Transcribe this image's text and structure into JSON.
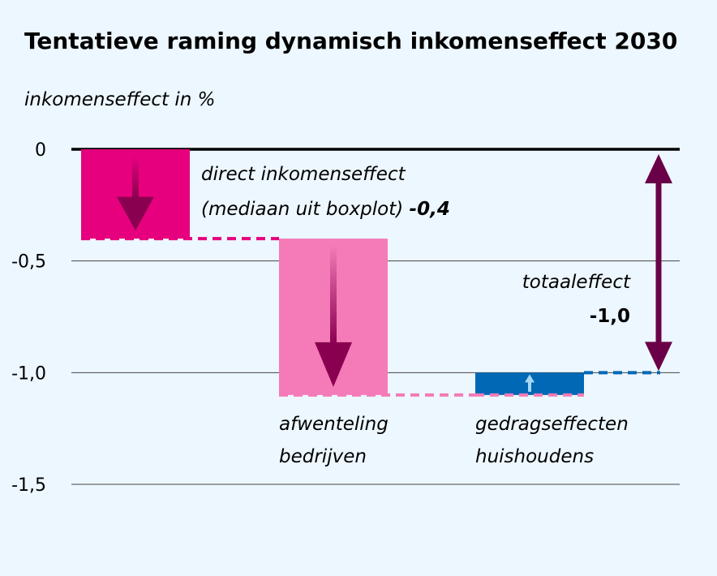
{
  "colors": {
    "background": "#edf7ff",
    "direct": "#e6007e",
    "afwenteling": "#f47bb8",
    "gedrag": "#0068b4",
    "total_arrow": "#6a0047",
    "down_arrow": "#8a0050",
    "up_arrow": "#a6d8f5"
  },
  "chart_data": {
    "type": "waterfall",
    "title": "Tentatieve raming dynamisch inkomenseffect 2030",
    "ylabel": "inkomenseffect in %",
    "ylim": [
      -1.5,
      0
    ],
    "yticks": [
      0,
      -0.5,
      -1.0,
      -1.5
    ],
    "ytick_labels": [
      "0",
      "-0,5",
      "-1,0",
      "-1,5"
    ],
    "grid": true,
    "steps": [
      {
        "key": "direct",
        "start": 0,
        "end": -0.4,
        "label": [
          "direct inkomenseffect",
          "(mediaan uit boxplot)"
        ],
        "value_label": "-0,4",
        "direction": "down"
      },
      {
        "key": "afwenteling",
        "start": -0.4,
        "end": -1.1,
        "label": [
          "afwenteling",
          "bedrijven"
        ],
        "direction": "down"
      },
      {
        "key": "gedrag",
        "start": -1.1,
        "end": -1.0,
        "label": [
          "gedragseffecten",
          "huishoudens"
        ],
        "direction": "up"
      }
    ],
    "total": {
      "start": 0,
      "end": -1.0,
      "label": "totaaleffect",
      "value_label": "-1,0"
    }
  }
}
